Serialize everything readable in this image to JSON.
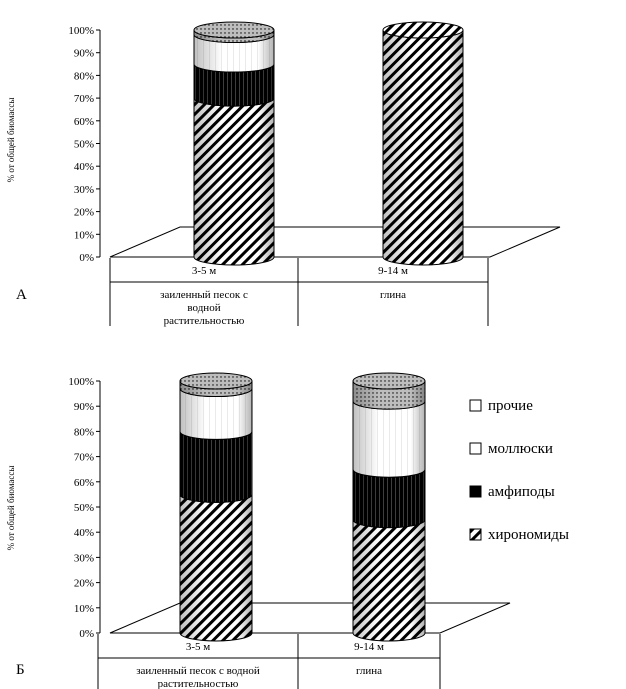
{
  "chart_data": [
    {
      "type": "bar",
      "panel_label": "А",
      "categories": [
        "3-5 м",
        "9-14 м"
      ],
      "category_descriptions": [
        [
          "заиленный песок с",
          "водной",
          "растительностью"
        ],
        [
          "глина"
        ]
      ],
      "series": [
        {
          "name": "хирономиды",
          "values": [
            70,
            100
          ]
        },
        {
          "name": "амфиподы",
          "values": [
            15,
            0
          ]
        },
        {
          "name": "моллюски",
          "values": [
            13,
            0
          ]
        },
        {
          "name": "прочие",
          "values": [
            2,
            0
          ]
        }
      ],
      "stacked": true,
      "percent": true,
      "ylabel": "% от общей биомассы",
      "ylim": [
        0,
        100
      ],
      "yticks": [
        "0%",
        "10%",
        "20%",
        "30%",
        "40%",
        "50%",
        "60%",
        "70%",
        "80%",
        "90%",
        "100%"
      ],
      "grid": false
    },
    {
      "type": "bar",
      "panel_label": "Б",
      "categories": [
        "3-5 м",
        "9-14 м"
      ],
      "category_descriptions": [
        [
          "заиленный песок с водной",
          "растительностью"
        ],
        [
          "глина"
        ]
      ],
      "series": [
        {
          "name": "хирономиды",
          "values": [
            55,
            45
          ]
        },
        {
          "name": "амфиподы",
          "values": [
            25,
            20
          ]
        },
        {
          "name": "моллюски",
          "values": [
            17,
            27
          ]
        },
        {
          "name": "прочие",
          "values": [
            3,
            8
          ]
        }
      ],
      "stacked": true,
      "percent": true,
      "ylabel": "% от общей биомассы",
      "ylim": [
        0,
        100
      ],
      "yticks": [
        "0%",
        "10%",
        "20%",
        "30%",
        "40%",
        "50%",
        "60%",
        "70%",
        "80%",
        "90%",
        "100%"
      ],
      "grid": false,
      "legend": {
        "placement": "right",
        "entries": [
          "прочие",
          "моллюски",
          "амфиподы",
          "хирономиды"
        ]
      }
    }
  ],
  "colors": {
    "хирономиды": "hatch",
    "амфиподы": "#000000",
    "моллюски": "#ffffff",
    "прочие": "dotted"
  }
}
